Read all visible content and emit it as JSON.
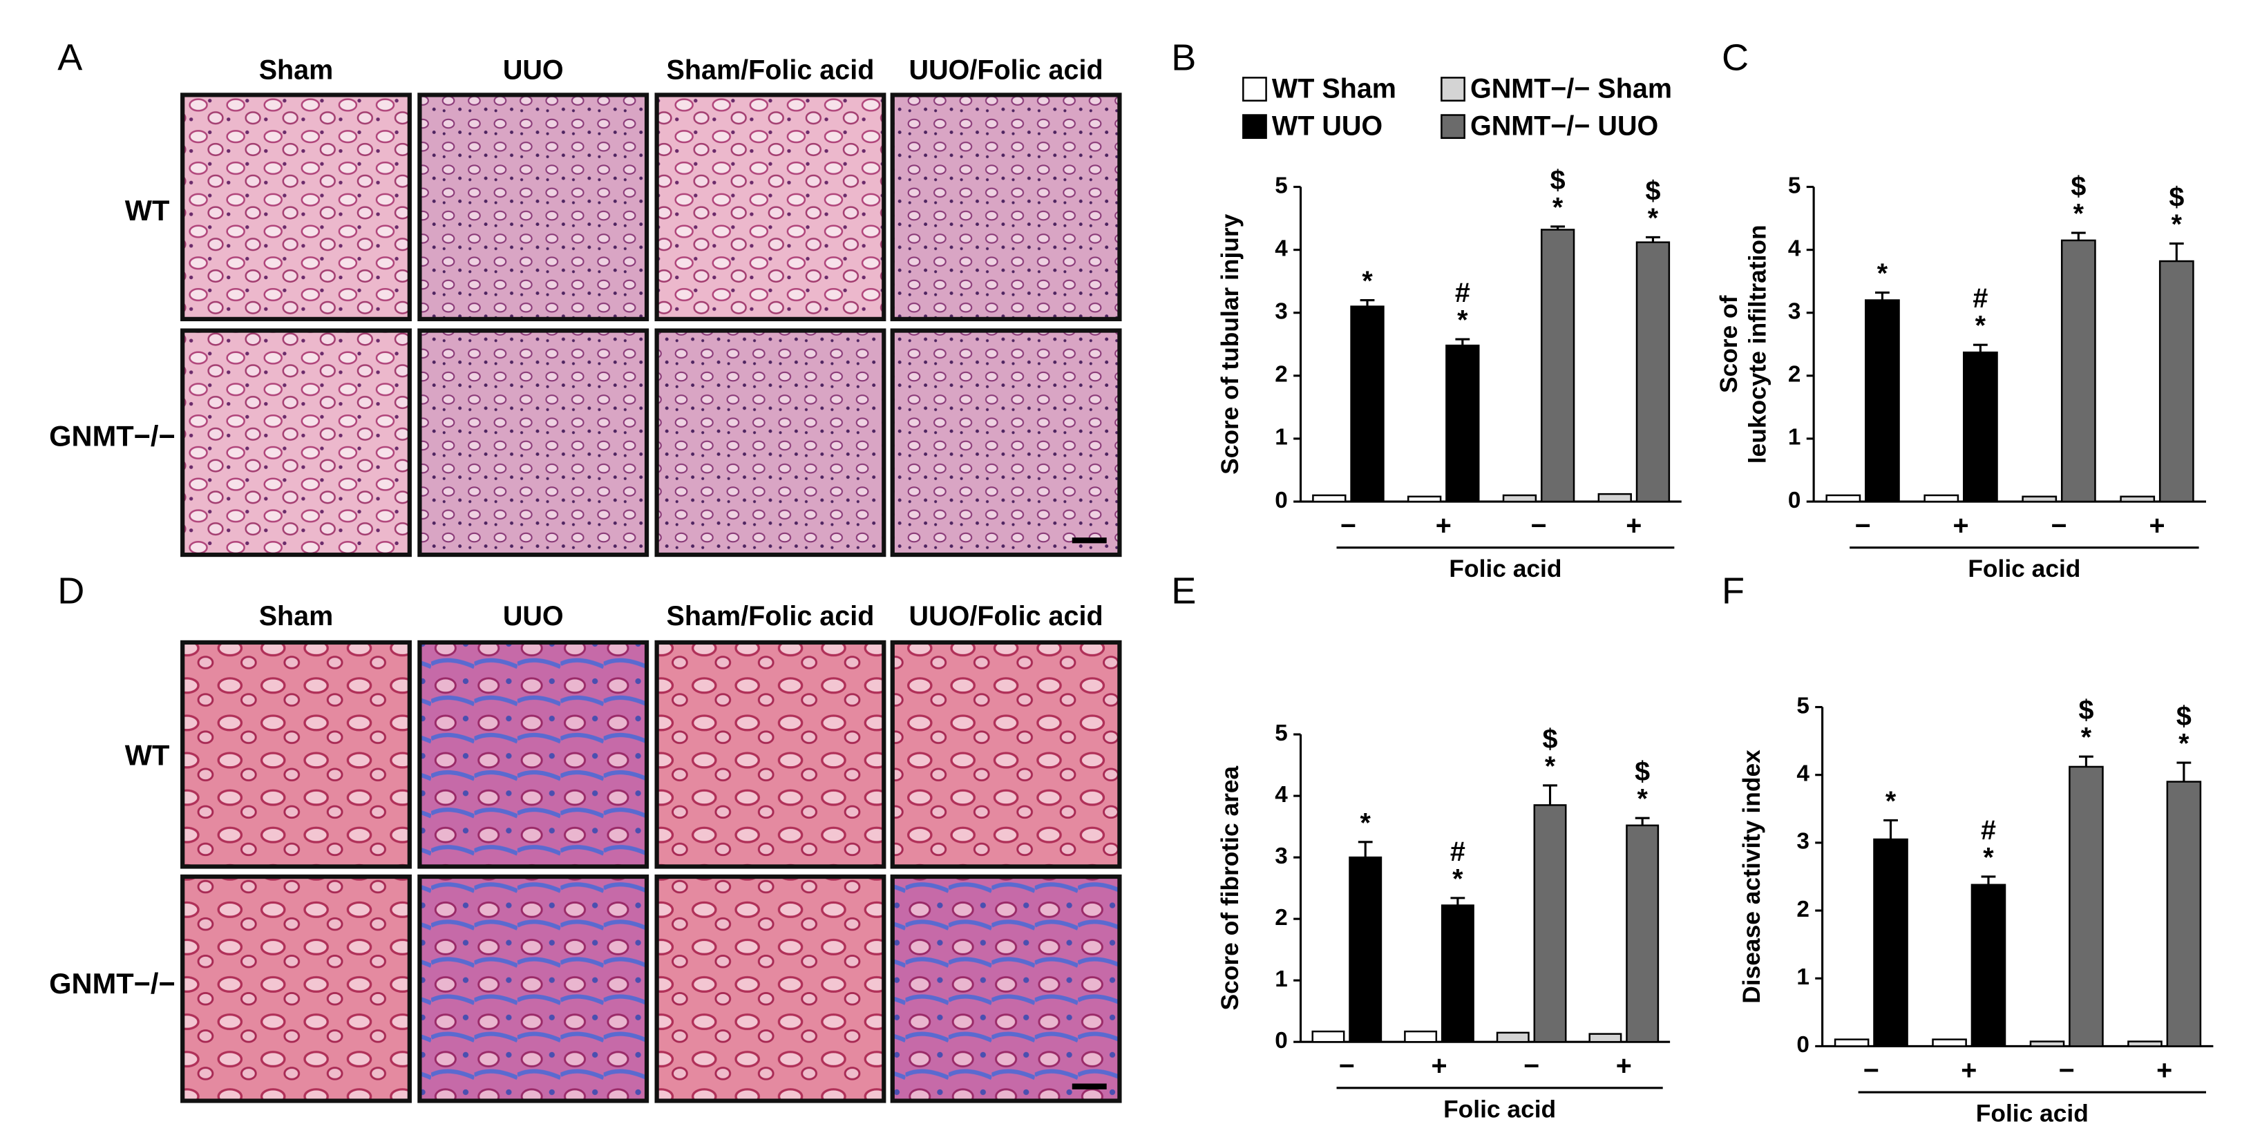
{
  "figure": {
    "panel_labels": [
      "A",
      "B",
      "C",
      "D",
      "E",
      "F"
    ],
    "histology": [
      {
        "columns": [
          "Sham",
          "UUO",
          "Sham/Folic acid",
          "UUO/Folic acid"
        ],
        "rows": [
          "WT",
          "GNMT−/−"
        ]
      },
      {
        "columns": [
          "Sham",
          "UUO",
          "Sham/Folic acid",
          "UUO/Folic acid"
        ],
        "rows": [
          "WT",
          "GNMT−/−"
        ]
      }
    ]
  },
  "chart_data": [
    {
      "type": "bar",
      "y_label": [
        "Score of tubular injury"
      ],
      "x_label": "Folic acid",
      "categories": [
        "−",
        "+",
        "−",
        "+"
      ],
      "ylim": [
        0,
        5
      ],
      "yticks": [
        0,
        1,
        2,
        3,
        4,
        5
      ],
      "series": [
        {
          "name": "WT Sham",
          "color": "#ffffff",
          "values": [
            0.1,
            0.08,
            null,
            null
          ]
        },
        {
          "name": "GNMT−/− Sham",
          "color": "#d4d4d4",
          "values": [
            null,
            null,
            0.1,
            0.12
          ]
        },
        {
          "name": "WT UUO",
          "color": "#000000",
          "values": [
            3.1,
            2.48,
            null,
            null
          ],
          "errors": [
            0.1,
            0.1,
            null,
            null
          ],
          "annotations": [
            [
              "*"
            ],
            [
              "#",
              "*"
            ],
            null,
            null
          ]
        },
        {
          "name": "GNMT−/− UUO",
          "color": "#6b6b6b",
          "values": [
            null,
            null,
            4.32,
            4.12
          ],
          "errors": [
            null,
            null,
            0.05,
            0.08
          ],
          "annotations": [
            null,
            null,
            [
              "$",
              "*"
            ],
            [
              "$",
              "*"
            ]
          ]
        }
      ]
    },
    {
      "type": "bar",
      "y_label": [
        "Score of",
        "leukocyte infiltration"
      ],
      "x_label": "Folic acid",
      "categories": [
        "−",
        "+",
        "−",
        "+"
      ],
      "ylim": [
        0,
        5
      ],
      "yticks": [
        0,
        1,
        2,
        3,
        4,
        5
      ],
      "series": [
        {
          "name": "WT Sham",
          "color": "#ffffff",
          "values": [
            0.1,
            0.1,
            null,
            null
          ]
        },
        {
          "name": "GNMT−/− Sham",
          "color": "#d4d4d4",
          "values": [
            null,
            null,
            0.08,
            0.08
          ]
        },
        {
          "name": "WT UUO",
          "color": "#000000",
          "values": [
            3.2,
            2.37,
            null,
            null
          ],
          "errors": [
            0.12,
            0.12,
            null,
            null
          ],
          "annotations": [
            [
              "*"
            ],
            [
              "#",
              "*"
            ],
            null,
            null
          ]
        },
        {
          "name": "GNMT−/− UUO",
          "color": "#6b6b6b",
          "values": [
            null,
            null,
            4.15,
            3.82
          ],
          "errors": [
            null,
            null,
            0.12,
            0.28
          ],
          "annotations": [
            null,
            null,
            [
              "$",
              "*"
            ],
            [
              "$",
              "*"
            ]
          ]
        }
      ]
    },
    {
      "type": "bar",
      "y_label": [
        "Score of fibrotic area"
      ],
      "x_label": "Folic acid",
      "categories": [
        "−",
        "+",
        "−",
        "+"
      ],
      "ylim": [
        0,
        5
      ],
      "yticks": [
        0,
        1,
        2,
        3,
        4,
        5
      ],
      "series": [
        {
          "name": "WT Sham",
          "color": "#ffffff",
          "values": [
            0.17,
            0.17,
            null,
            null
          ]
        },
        {
          "name": "GNMT−/− Sham",
          "color": "#d4d4d4",
          "values": [
            null,
            null,
            0.15,
            0.13
          ]
        },
        {
          "name": "WT UUO",
          "color": "#000000",
          "values": [
            3.0,
            2.22,
            null,
            null
          ],
          "errors": [
            0.25,
            0.12,
            null,
            null
          ],
          "annotations": [
            [
              "*"
            ],
            [
              "#",
              "*"
            ],
            null,
            null
          ]
        },
        {
          "name": "GNMT−/− UUO",
          "color": "#6b6b6b",
          "values": [
            null,
            null,
            3.85,
            3.52
          ],
          "errors": [
            null,
            null,
            0.32,
            0.12
          ],
          "annotations": [
            null,
            null,
            [
              "$",
              "*"
            ],
            [
              "$",
              "*"
            ]
          ]
        }
      ]
    },
    {
      "type": "bar",
      "y_label": [
        "Disease activity index"
      ],
      "x_label": "Folic acid",
      "categories": [
        "−",
        "+",
        "−",
        "+"
      ],
      "ylim": [
        0,
        5
      ],
      "yticks": [
        0,
        1,
        2,
        3,
        4,
        5
      ],
      "series": [
        {
          "name": "WT Sham",
          "color": "#ffffff",
          "values": [
            0.1,
            0.1,
            null,
            null
          ]
        },
        {
          "name": "GNMT−/− Sham",
          "color": "#d4d4d4",
          "values": [
            null,
            null,
            0.07,
            0.07
          ]
        },
        {
          "name": "WT UUO",
          "color": "#000000",
          "values": [
            3.05,
            2.38,
            null,
            null
          ],
          "errors": [
            0.28,
            0.12,
            null,
            null
          ],
          "annotations": [
            [
              "*"
            ],
            [
              "#",
              "*"
            ],
            null,
            null
          ]
        },
        {
          "name": "GNMT−/− UUO",
          "color": "#6b6b6b",
          "values": [
            null,
            null,
            4.12,
            3.9
          ],
          "errors": [
            null,
            null,
            0.15,
            0.28
          ],
          "annotations": [
            null,
            null,
            [
              "$",
              "*"
            ],
            [
              "$",
              "*"
            ]
          ]
        }
      ]
    }
  ]
}
